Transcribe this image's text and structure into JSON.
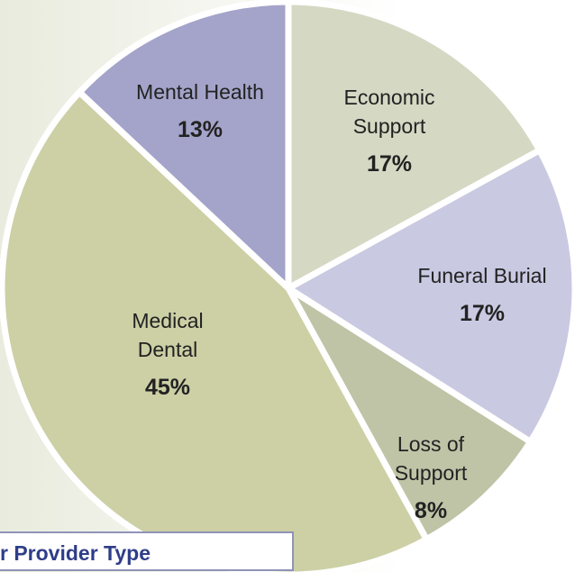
{
  "chart_data": {
    "type": "pie",
    "categories": [
      "Economic Support",
      "Funeral Burial",
      "Loss of Support",
      "Medical Dental",
      "Mental Health"
    ],
    "values": [
      17,
      17,
      8,
      45,
      13
    ],
    "value_labels": [
      "17%",
      "17%",
      "8%",
      "45%",
      "13%"
    ],
    "colors": [
      "#d5d8c3",
      "#c9c9e2",
      "#bfc4a7",
      "#cdcfa5",
      "#a4a4ca"
    ],
    "annotation": "r Provider Type"
  }
}
